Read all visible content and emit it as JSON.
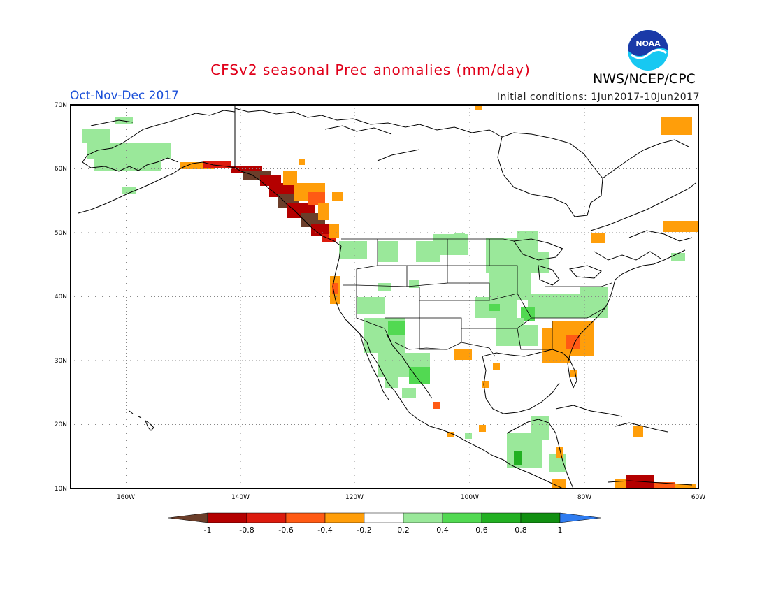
{
  "title": "CFSv2 seasonal Prec anomalies (mm/day)",
  "period": "Oct-Nov-Dec 2017",
  "initial_conditions": "Initial conditions: 1Jun2017-10Jun2017",
  "agency": "NWS/NCEP/CPC",
  "logo_text": "NOAA",
  "map": {
    "lat_labels": [
      "70N",
      "60N",
      "50N",
      "40N",
      "30N",
      "20N",
      "10N"
    ],
    "lon_labels": [
      "160W",
      "140W",
      "120W",
      "100W",
      "80W",
      "60W"
    ],
    "extent": {
      "lon_min": -173,
      "lon_max": -60,
      "lat_min": 10,
      "lat_max": 70
    }
  },
  "colorbar": {
    "ticks": [
      "-1",
      "-0.8",
      "-0.6",
      "-0.4",
      "-0.2",
      "0.2",
      "0.4",
      "0.6",
      "0.8",
      "1"
    ],
    "colors": {
      "lt_-1": "#6b3e2a",
      "-1_-0.8": "#b40000",
      "-0.8_-0.6": "#dc1a0d",
      "-0.6_-0.4": "#ff5a14",
      "-0.4_-0.2": "#ff9e0a",
      "-0.2_0.2": "#ffffff",
      "0.2_0.4": "#9ae89a",
      "0.4_0.6": "#52d952",
      "0.6_0.8": "#22b022",
      "0.8_1": "#118f11",
      "gt_1": "#2f7cf0"
    }
  }
}
